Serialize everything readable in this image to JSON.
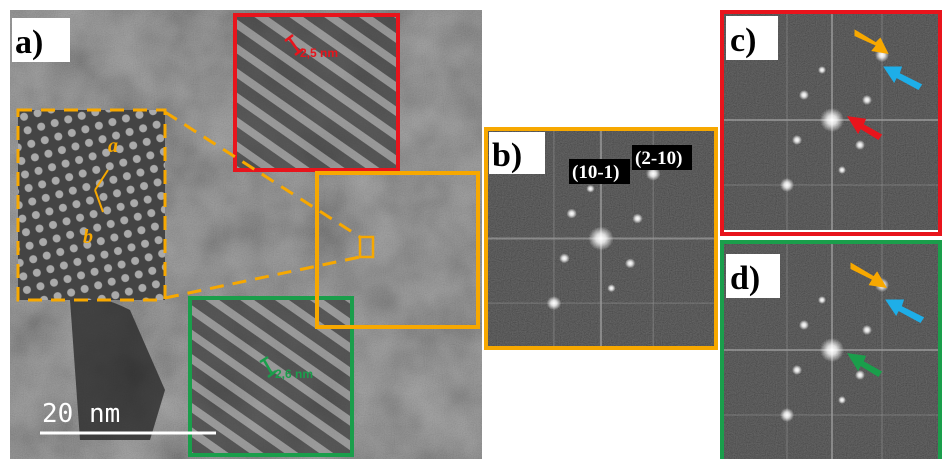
{
  "panels": {
    "a": {
      "label": "a)",
      "scale_bar": "20 nm",
      "red_spacing": "2,5 nm",
      "green_spacing": "2,6 nm",
      "inset_labels": [
        "a",
        "b"
      ]
    },
    "b": {
      "label": "b)",
      "planes": [
        "(10-1)",
        "(2-10)"
      ]
    },
    "c": {
      "label": "c)"
    },
    "d": {
      "label": "d)"
    }
  }
}
